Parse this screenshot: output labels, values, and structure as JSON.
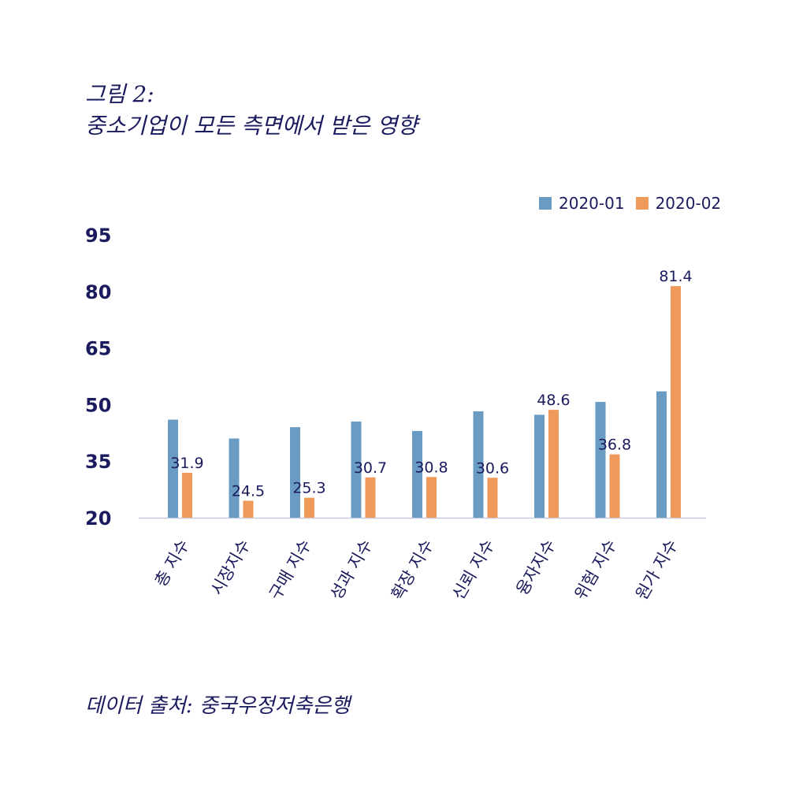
{
  "figure": {
    "title_line1": "그림 2:",
    "title_line2": "중소기업이 모든 측면에서 받은 영향",
    "source": "데이터 출처: 중국우정저축은행"
  },
  "colors": {
    "series1": "#6a9bc3",
    "series2": "#ef9a5a",
    "text": "#1a1a5e",
    "axis": "#c8cbe0"
  },
  "chart_data": {
    "type": "bar",
    "categories": [
      "총 지수",
      "시장지수",
      "구매 지수",
      "성과 지수",
      "확장 지수",
      "신뢰 지수",
      "융자지수",
      "위험 지수",
      "원가 지수"
    ],
    "series": [
      {
        "name": "2020-01",
        "values": [
          46.0,
          41.0,
          44.0,
          45.5,
          43.0,
          48.2,
          47.3,
          50.7,
          53.5
        ]
      },
      {
        "name": "2020-02",
        "values": [
          31.9,
          24.5,
          25.3,
          30.7,
          30.8,
          30.6,
          48.6,
          36.8,
          81.4
        ]
      }
    ],
    "data_labels": [
      "31.9",
      "24.5",
      "25.3",
      "30.7",
      "30.8",
      "30.6",
      "48.6",
      "36.8",
      "81.4"
    ],
    "yticks": [
      "20",
      "35",
      "50",
      "65",
      "80",
      "95"
    ],
    "ylim": [
      20,
      95
    ],
    "legend": "top-right",
    "grid": false
  }
}
